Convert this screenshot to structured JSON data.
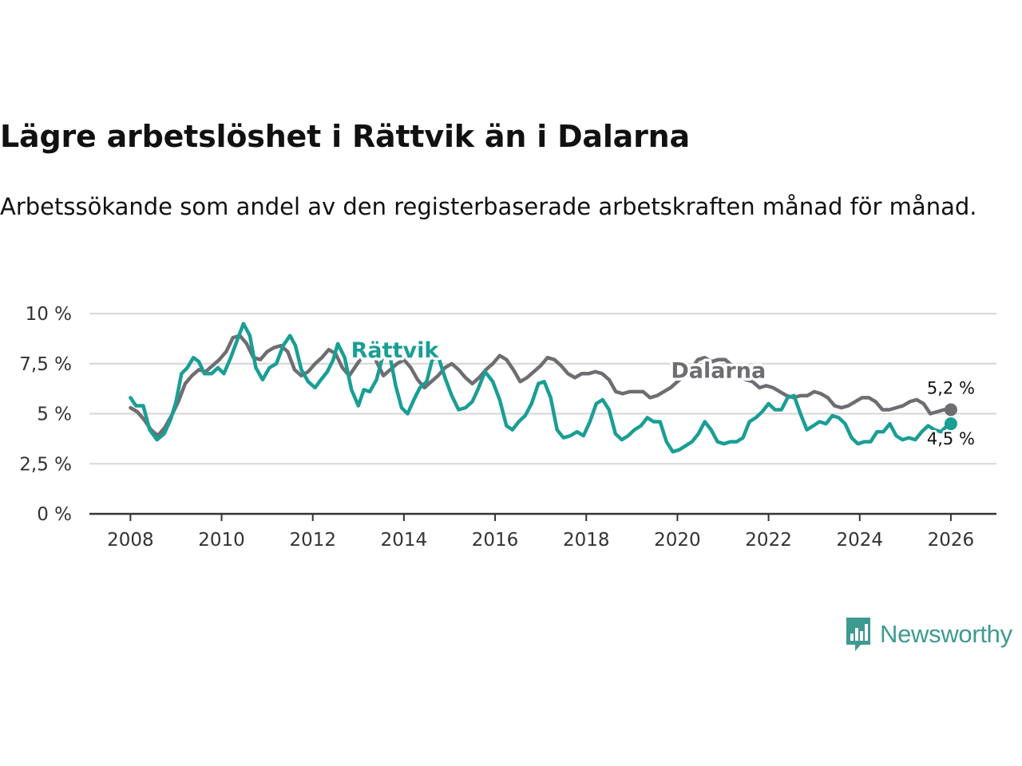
{
  "header": {
    "title": "Lägre arbetslöshet i Rättvik än i Dalarna",
    "subtitle": "Arbetssökande som andel av den registerbaserade arbetskraften månad för månad."
  },
  "brand": {
    "name": "Newsworthy",
    "icon": "newsworthy-logo-icon",
    "color": "#3d9a91"
  },
  "chart_data": {
    "type": "line",
    "title": "Lägre arbetslöshet i Rättvik än i Dalarna",
    "subtitle": "Arbetssökande som andel av den registerbaserade arbetskraften månad för månad.",
    "xlabel": "",
    "ylabel": "",
    "xlim": [
      2007.1,
      2027
    ],
    "ylim": [
      0,
      10
    ],
    "y_ticks": [
      0,
      2.5,
      5,
      7.5,
      10
    ],
    "y_tick_labels": [
      "0 %",
      "2,5 %",
      "5 %",
      "7,5 %",
      "10 %"
    ],
    "x_ticks": [
      2008,
      2010,
      2012,
      2014,
      2016,
      2018,
      2020,
      2022,
      2024,
      2026
    ],
    "x_tick_labels": [
      "2008",
      "2010",
      "2012",
      "2014",
      "2016",
      "2018",
      "2020",
      "2022",
      "2024",
      "2026"
    ],
    "grid": true,
    "series": [
      {
        "name": "Dalarna",
        "color": "#6e6d72",
        "end_label": "5,2 %",
        "points": [
          [
            2008.0,
            5.3
          ],
          [
            2008.15,
            5.1
          ],
          [
            2008.3,
            4.7
          ],
          [
            2008.45,
            4.2
          ],
          [
            2008.6,
            3.9
          ],
          [
            2008.75,
            4.3
          ],
          [
            2008.9,
            4.9
          ],
          [
            2009.05,
            5.6
          ],
          [
            2009.2,
            6.5
          ],
          [
            2009.35,
            6.9
          ],
          [
            2009.5,
            7.2
          ],
          [
            2009.65,
            7.1
          ],
          [
            2009.8,
            7.4
          ],
          [
            2009.95,
            7.7
          ],
          [
            2010.1,
            8.1
          ],
          [
            2010.25,
            8.8
          ],
          [
            2010.4,
            8.9
          ],
          [
            2010.55,
            8.5
          ],
          [
            2010.7,
            7.8
          ],
          [
            2010.85,
            7.7
          ],
          [
            2011.0,
            8.1
          ],
          [
            2011.15,
            8.3
          ],
          [
            2011.3,
            8.4
          ],
          [
            2011.45,
            8.1
          ],
          [
            2011.6,
            7.2
          ],
          [
            2011.75,
            6.9
          ],
          [
            2011.9,
            7.1
          ],
          [
            2012.05,
            7.5
          ],
          [
            2012.2,
            7.8
          ],
          [
            2012.35,
            8.2
          ],
          [
            2012.5,
            8.0
          ],
          [
            2012.65,
            7.3
          ],
          [
            2012.8,
            6.9
          ],
          [
            2012.95,
            7.4
          ],
          [
            2013.1,
            7.9
          ],
          [
            2013.25,
            8.2
          ],
          [
            2013.4,
            7.6
          ],
          [
            2013.55,
            6.9
          ],
          [
            2013.7,
            7.2
          ],
          [
            2013.85,
            7.5
          ],
          [
            2014.0,
            7.7
          ],
          [
            2014.15,
            7.3
          ],
          [
            2014.3,
            6.7
          ],
          [
            2014.45,
            6.3
          ],
          [
            2014.6,
            6.6
          ],
          [
            2014.75,
            6.9
          ],
          [
            2014.9,
            7.3
          ],
          [
            2015.05,
            7.5
          ],
          [
            2015.2,
            7.2
          ],
          [
            2015.35,
            6.8
          ],
          [
            2015.5,
            6.5
          ],
          [
            2015.65,
            6.8
          ],
          [
            2015.8,
            7.2
          ],
          [
            2015.95,
            7.5
          ],
          [
            2016.1,
            7.9
          ],
          [
            2016.25,
            7.7
          ],
          [
            2016.4,
            7.2
          ],
          [
            2016.55,
            6.6
          ],
          [
            2016.7,
            6.8
          ],
          [
            2016.85,
            7.1
          ],
          [
            2017.0,
            7.4
          ],
          [
            2017.15,
            7.8
          ],
          [
            2017.3,
            7.7
          ],
          [
            2017.45,
            7.4
          ],
          [
            2017.6,
            7.0
          ],
          [
            2017.75,
            6.8
          ],
          [
            2017.9,
            7.0
          ],
          [
            2018.05,
            7.0
          ],
          [
            2018.2,
            7.1
          ],
          [
            2018.35,
            7.0
          ],
          [
            2018.5,
            6.7
          ],
          [
            2018.65,
            6.1
          ],
          [
            2018.8,
            6.0
          ],
          [
            2018.95,
            6.1
          ],
          [
            2019.1,
            6.1
          ],
          [
            2019.25,
            6.1
          ],
          [
            2019.4,
            5.8
          ],
          [
            2019.55,
            5.9
          ],
          [
            2019.7,
            6.1
          ],
          [
            2019.85,
            6.3
          ],
          [
            2020.0,
            6.6
          ],
          [
            2020.15,
            6.9
          ],
          [
            2020.3,
            7.2
          ],
          [
            2020.45,
            7.7
          ],
          [
            2020.6,
            7.8
          ],
          [
            2020.75,
            7.6
          ],
          [
            2020.9,
            7.7
          ],
          [
            2021.05,
            7.7
          ],
          [
            2021.2,
            7.4
          ],
          [
            2021.35,
            7.0
          ],
          [
            2021.5,
            6.7
          ],
          [
            2021.65,
            6.6
          ],
          [
            2021.8,
            6.3
          ],
          [
            2021.95,
            6.4
          ],
          [
            2022.1,
            6.3
          ],
          [
            2022.25,
            6.1
          ],
          [
            2022.4,
            5.9
          ],
          [
            2022.55,
            5.8
          ],
          [
            2022.7,
            5.9
          ],
          [
            2022.85,
            5.9
          ],
          [
            2023.0,
            6.1
          ],
          [
            2023.15,
            6.0
          ],
          [
            2023.3,
            5.8
          ],
          [
            2023.45,
            5.4
          ],
          [
            2023.6,
            5.3
          ],
          [
            2023.75,
            5.4
          ],
          [
            2023.9,
            5.6
          ],
          [
            2024.05,
            5.8
          ],
          [
            2024.2,
            5.8
          ],
          [
            2024.35,
            5.6
          ],
          [
            2024.5,
            5.2
          ],
          [
            2024.65,
            5.2
          ],
          [
            2024.8,
            5.3
          ],
          [
            2024.95,
            5.4
          ],
          [
            2025.1,
            5.6
          ],
          [
            2025.25,
            5.7
          ],
          [
            2025.4,
            5.5
          ],
          [
            2025.55,
            5.0
          ],
          [
            2025.7,
            5.1
          ],
          [
            2025.85,
            5.2
          ],
          [
            2026.0,
            5.2
          ]
        ]
      },
      {
        "name": "Rättvik",
        "color": "#1a9e95",
        "end_label": "4,5 %",
        "points": [
          [
            2008.0,
            5.8
          ],
          [
            2008.12,
            5.4
          ],
          [
            2008.28,
            5.4
          ],
          [
            2008.42,
            4.2
          ],
          [
            2008.58,
            3.7
          ],
          [
            2008.74,
            4.0
          ],
          [
            2008.88,
            4.7
          ],
          [
            2009.0,
            5.6
          ],
          [
            2009.12,
            7.0
          ],
          [
            2009.25,
            7.3
          ],
          [
            2009.38,
            7.8
          ],
          [
            2009.5,
            7.6
          ],
          [
            2009.62,
            7.0
          ],
          [
            2009.78,
            7.0
          ],
          [
            2009.92,
            7.3
          ],
          [
            2010.05,
            7.0
          ],
          [
            2010.2,
            7.8
          ],
          [
            2010.33,
            8.6
          ],
          [
            2010.48,
            9.5
          ],
          [
            2010.62,
            8.9
          ],
          [
            2010.75,
            7.3
          ],
          [
            2010.9,
            6.7
          ],
          [
            2011.05,
            7.3
          ],
          [
            2011.2,
            7.5
          ],
          [
            2011.35,
            8.4
          ],
          [
            2011.5,
            8.9
          ],
          [
            2011.62,
            8.4
          ],
          [
            2011.75,
            7.2
          ],
          [
            2011.9,
            6.6
          ],
          [
            2012.05,
            6.3
          ],
          [
            2012.18,
            6.7
          ],
          [
            2012.32,
            7.1
          ],
          [
            2012.45,
            7.7
          ],
          [
            2012.55,
            8.5
          ],
          [
            2012.7,
            7.8
          ],
          [
            2012.85,
            6.2
          ],
          [
            2013.0,
            5.4
          ],
          [
            2013.12,
            6.2
          ],
          [
            2013.25,
            6.1
          ],
          [
            2013.4,
            6.7
          ],
          [
            2013.55,
            8.0
          ],
          [
            2013.7,
            7.8
          ],
          [
            2013.82,
            6.4
          ],
          [
            2013.95,
            5.3
          ],
          [
            2014.08,
            5.0
          ],
          [
            2014.22,
            5.7
          ],
          [
            2014.35,
            6.3
          ],
          [
            2014.5,
            6.6
          ],
          [
            2014.62,
            7.7
          ],
          [
            2014.76,
            7.8
          ],
          [
            2014.9,
            6.8
          ],
          [
            2015.05,
            5.9
          ],
          [
            2015.2,
            5.2
          ],
          [
            2015.35,
            5.3
          ],
          [
            2015.5,
            5.6
          ],
          [
            2015.62,
            6.2
          ],
          [
            2015.78,
            7.1
          ],
          [
            2015.95,
            6.6
          ],
          [
            2016.1,
            5.7
          ],
          [
            2016.25,
            4.4
          ],
          [
            2016.38,
            4.2
          ],
          [
            2016.52,
            4.6
          ],
          [
            2016.66,
            4.9
          ],
          [
            2016.8,
            5.5
          ],
          [
            2016.95,
            6.5
          ],
          [
            2017.08,
            6.6
          ],
          [
            2017.22,
            5.8
          ],
          [
            2017.36,
            4.2
          ],
          [
            2017.5,
            3.8
          ],
          [
            2017.65,
            3.9
          ],
          [
            2017.8,
            4.1
          ],
          [
            2017.94,
            3.9
          ],
          [
            2018.08,
            4.6
          ],
          [
            2018.22,
            5.5
          ],
          [
            2018.36,
            5.7
          ],
          [
            2018.5,
            5.2
          ],
          [
            2018.64,
            4.0
          ],
          [
            2018.78,
            3.7
          ],
          [
            2018.92,
            3.9
          ],
          [
            2019.06,
            4.2
          ],
          [
            2019.2,
            4.4
          ],
          [
            2019.34,
            4.8
          ],
          [
            2019.48,
            4.6
          ],
          [
            2019.62,
            4.6
          ],
          [
            2019.76,
            3.6
          ],
          [
            2019.9,
            3.1
          ],
          [
            2020.04,
            3.2
          ],
          [
            2020.18,
            3.4
          ],
          [
            2020.32,
            3.6
          ],
          [
            2020.46,
            4.0
          ],
          [
            2020.6,
            4.6
          ],
          [
            2020.74,
            4.2
          ],
          [
            2020.88,
            3.6
          ],
          [
            2021.02,
            3.5
          ],
          [
            2021.16,
            3.6
          ],
          [
            2021.3,
            3.6
          ],
          [
            2021.44,
            3.8
          ],
          [
            2021.58,
            4.6
          ],
          [
            2021.72,
            4.8
          ],
          [
            2021.86,
            5.1
          ],
          [
            2022.0,
            5.5
          ],
          [
            2022.14,
            5.2
          ],
          [
            2022.28,
            5.2
          ],
          [
            2022.42,
            5.8
          ],
          [
            2022.56,
            5.9
          ],
          [
            2022.7,
            5.0
          ],
          [
            2022.84,
            4.2
          ],
          [
            2022.98,
            4.4
          ],
          [
            2023.12,
            4.6
          ],
          [
            2023.26,
            4.5
          ],
          [
            2023.4,
            4.9
          ],
          [
            2023.54,
            4.8
          ],
          [
            2023.68,
            4.5
          ],
          [
            2023.82,
            3.8
          ],
          [
            2023.96,
            3.5
          ],
          [
            2024.1,
            3.6
          ],
          [
            2024.24,
            3.6
          ],
          [
            2024.38,
            4.1
          ],
          [
            2024.52,
            4.1
          ],
          [
            2024.66,
            4.5
          ],
          [
            2024.8,
            3.9
          ],
          [
            2024.94,
            3.7
          ],
          [
            2025.08,
            3.8
          ],
          [
            2025.22,
            3.7
          ],
          [
            2025.36,
            4.1
          ],
          [
            2025.5,
            4.4
          ],
          [
            2025.64,
            4.2
          ],
          [
            2025.78,
            4.1
          ],
          [
            2025.92,
            4.4
          ],
          [
            2026.0,
            4.5
          ]
        ]
      }
    ]
  }
}
